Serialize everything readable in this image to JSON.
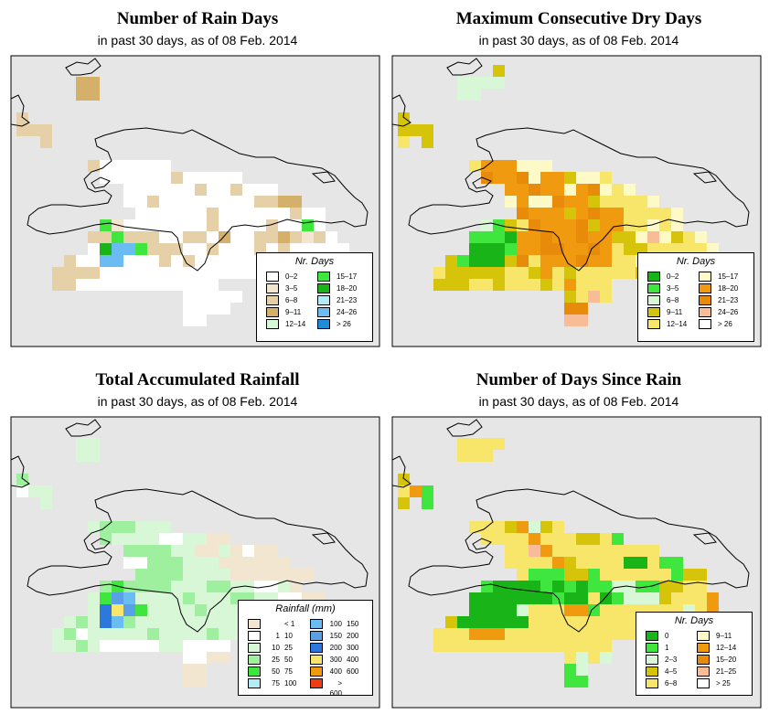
{
  "date": "08 Feb. 2014",
  "panels": [
    {
      "id": "rain-days",
      "title": "Number of Rain Days",
      "subtitle": "in past 30 days, as of 08 Feb. 2014",
      "legend": {
        "title": "Nr. Days",
        "items": [
          {
            "label": "0–2",
            "color": "#ffffff"
          },
          {
            "label": "3–5",
            "color": "#f3e6d0"
          },
          {
            "label": "6–8",
            "color": "#e6d0a8"
          },
          {
            "label": "9–11",
            "color": "#d4b06a"
          },
          {
            "label": "12–14",
            "color": "#d7f7d7"
          },
          {
            "label": "15–17",
            "color": "#3ee63e"
          },
          {
            "label": "18–20",
            "color": "#18b418"
          },
          {
            "label": "21–23",
            "color": "#b4ecf6"
          },
          {
            "label": "24–26",
            "color": "#6abcf2"
          },
          {
            "label": "> 26",
            "color": "#1e8cd8"
          }
        ]
      },
      "grid": [
        "..............................",
        ".....DD.......................",
        ".....DD.......................",
        "..............................",
        "C.............................",
        "CCC...........................",
        "..C...........................",
        "..............................",
        "......CAAAAAA.................",
        ".......AAAAAACAAAAA...........",
        ".........AAAAAACAACAAA........",
        ".........AACAAAAAAAACCDD......",
        "..........AAAAAACAAAAAACAA....",
        ".......FBAAAAAAACAAAACAAFA....",
        "......CCFCCCAACCADAACCDCBCA...",
        "......AGIIFCCCAACAAACACAAAAA..",
        "....CAAIIAAACACAAAAAAAAAAAAA..",
        "...CCCCAAAAAAAAAAAAAAA........",
        "...CCAAAAAAAAAAAA.............",
        "..............AAAAA...........",
        "..............AAAA............",
        "..............AA.............."
      ]
    },
    {
      "id": "dry-days",
      "title": "Maximum Consecutive Dry Days",
      "subtitle": "in past 30 days, as of 08 Feb. 2014",
      "legend": {
        "title": "Nr. Days",
        "items": [
          {
            "label": "0–2",
            "color": "#18b418"
          },
          {
            "label": "3–5",
            "color": "#3ee63e"
          },
          {
            "label": "6–8",
            "color": "#d7f7d7"
          },
          {
            "label": "9–11",
            "color": "#d6c40a"
          },
          {
            "label": "12–14",
            "color": "#f8e66a"
          },
          {
            "label": "15–17",
            "color": "#fefac8"
          },
          {
            "label": "18–20",
            "color": "#f09a10"
          },
          {
            "label": "21–23",
            "color": "#e88a0a"
          },
          {
            "label": "24–26",
            "color": "#f8bc96"
          },
          {
            "label": "> 26",
            "color": "#ffffff"
          }
        ]
      },
      "grid": [
        "........D.....................",
        ".....CCCC.....................",
        ".....CC.......................",
        "..............................",
        "D.............................",
        "DDD...........................",
        "E.D...........................",
        "..............................",
        "......EGGGFFF.................",
        ".......HGGHFGGDFFE............",
        ".........GGHGGFGHFEF..........",
        ".........FGFFHGGDEEEEF........",
        "..........HGGGDGHGGEEEEF......",
        ".......CBDEHGGGHDGGEEFEF......",
        "......BBBAGGHGGHGGDDFIFDEF....",
        "......AAABGGHHGGHGEDDEEEEEF...",
        "....DBAAADHEGGGHGGEEFEEEDE....",
        "...EDDDDDEEDGEDEEEEEDEE.......",
        "...DDDEEDEEEDEGEEE............",
        "..............DEIE............",
        "..............HH..............",
        "..............II.............."
      ]
    },
    {
      "id": "total-rainfall",
      "title": "Total Accumulated Rainfall",
      "subtitle": "in past 30 days, as of 08 Feb. 2014",
      "legend": {
        "title": "Rainfall (mm)",
        "items": [
          {
            "lo": "",
            "hi": "< 1",
            "color": "#f3e6d0"
          },
          {
            "lo": "1",
            "hi": "10",
            "color": "#ffffff"
          },
          {
            "lo": "10",
            "hi": "25",
            "color": "#d7f7d7"
          },
          {
            "lo": "25",
            "hi": "50",
            "color": "#9ef09e"
          },
          {
            "lo": "50",
            "hi": "75",
            "color": "#3ee63e"
          },
          {
            "lo": "75",
            "hi": "100",
            "color": "#b4ecf6"
          },
          {
            "lo": "100",
            "hi": "150",
            "color": "#6abcf2"
          },
          {
            "lo": "150",
            "hi": "200",
            "color": "#5aa0e6"
          },
          {
            "lo": "200",
            "hi": "300",
            "color": "#2c78dc"
          },
          {
            "lo": "300",
            "hi": "400",
            "color": "#f8e66a"
          },
          {
            "lo": "400",
            "hi": "600",
            "color": "#f09a10"
          },
          {
            "lo": "> 600",
            "hi": "",
            "color": "#f03c14"
          }
        ]
      },
      "grid": [
        "..............................",
        ".....CC.......................",
        ".....CC.......................",
        "..............................",
        "D.............................",
        "BCC...........................",
        "..C...........................",
        "..............................",
        "......CDDDCCC.................",
        ".......DCCCCBBCCAA............",
        ".........DDDDCCAACABAA........",
        ".........BBDDDCCCAAAAAA.......",
        "..........DDDDCCCCAAAAAAA.....",
        ".......DEDDDDCCCDDCCBBCA......",
        "......CEHGCCCCDCCCDDCCBBAA....",
        "......CIJHECCCCDCCCCCCBBA.....",
        "....CDCIGDCCCCCCCCCCCCCCCA....",
        "...CDBCCCCCDCCCCDCCCCC........",
        "...CCDCBBBBBCCBBBB............",
        "..............BBAA............",
        "..............AA..............",
        "..............AA.............."
      ]
    },
    {
      "id": "days-since-rain",
      "title": "Number of Days Since Rain",
      "subtitle": "in past 30 days, as of 08 Feb. 2014",
      "legend": {
        "title": "Nr. Days",
        "items": [
          {
            "label": "0",
            "color": "#18b418"
          },
          {
            "label": "1",
            "color": "#3ee63e"
          },
          {
            "label": "2–3",
            "color": "#d7f7d7"
          },
          {
            "label": "4–5",
            "color": "#d6c40a"
          },
          {
            "label": "6–8",
            "color": "#f8e66a"
          },
          {
            "label": "9–11",
            "color": "#fefac8"
          },
          {
            "label": "12–14",
            "color": "#f09a10"
          },
          {
            "label": "15–20",
            "color": "#e88a0a"
          },
          {
            "label": "21–25",
            "color": "#f8bc96"
          },
          {
            "label": "> 25",
            "color": "#ffffff"
          }
        ]
      },
      "grid": [
        "..............................",
        ".....EEEE.....................",
        ".....EEE......................",
        "..............................",
        "D.............................",
        "EGB...........................",
        "D.B...........................",
        "..............................",
        "......EEEDGCDE................",
        ".......EEEEGEEEDDEB...........",
        ".........EEIGEEEEEEEEE........",
        ".........EEEEGDEEEEAAEBB......",
        "..........EBBBDDBEEEEEEBDD....",
        ".......BAAAABABABBCCBBDDEE....",
        "......AAAAAAABAAEABCCCDEEEG...",
        "......AAAACEEEGGBEEEEEEECEG...",
        "....DAAAAAAEEEEEEEEEEEEDEG....",
        "...EEEGGGEEEEEEEEEEEEE........",
        "...EEEEEEEEEEEEEEE............",
        "..............ECEC............",
        "..............BC..............",
        "..............BB.............."
      ]
    }
  ]
}
